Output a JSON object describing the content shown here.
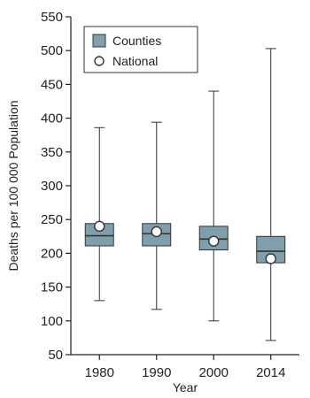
{
  "chart_data": {
    "type": "boxplot",
    "categories": [
      "1980",
      "1990",
      "2000",
      "2014"
    ],
    "xlabel": "Year",
    "ylabel": "Deaths per 100 000 Population",
    "ylim": [
      50,
      550
    ],
    "yticks": [
      50,
      100,
      150,
      200,
      250,
      300,
      350,
      400,
      450,
      500,
      550
    ],
    "grid": false,
    "legend": {
      "placement": "top-left",
      "entries": [
        {
          "label": "Counties",
          "marker": "box"
        },
        {
          "label": "National",
          "marker": "circle"
        }
      ]
    },
    "series": [
      {
        "name": "Counties",
        "boxes": [
          {
            "min": 130,
            "q1": 211,
            "median": 226,
            "q3": 244,
            "max": 386
          },
          {
            "min": 117,
            "q1": 211,
            "median": 229,
            "q3": 244,
            "max": 394
          },
          {
            "min": 100,
            "q1": 205,
            "median": 221,
            "q3": 240,
            "max": 440
          },
          {
            "min": 71,
            "q1": 186,
            "median": 203,
            "q3": 225,
            "max": 503
          }
        ]
      },
      {
        "name": "National",
        "values": [
          240,
          232,
          218,
          192
        ]
      }
    ],
    "colors": {
      "box_fill": "#7f9fac",
      "box_stroke": "#333333",
      "national_marker_fill": "#ffffff",
      "national_marker_stroke": "#333333",
      "axis": "#222222"
    }
  }
}
